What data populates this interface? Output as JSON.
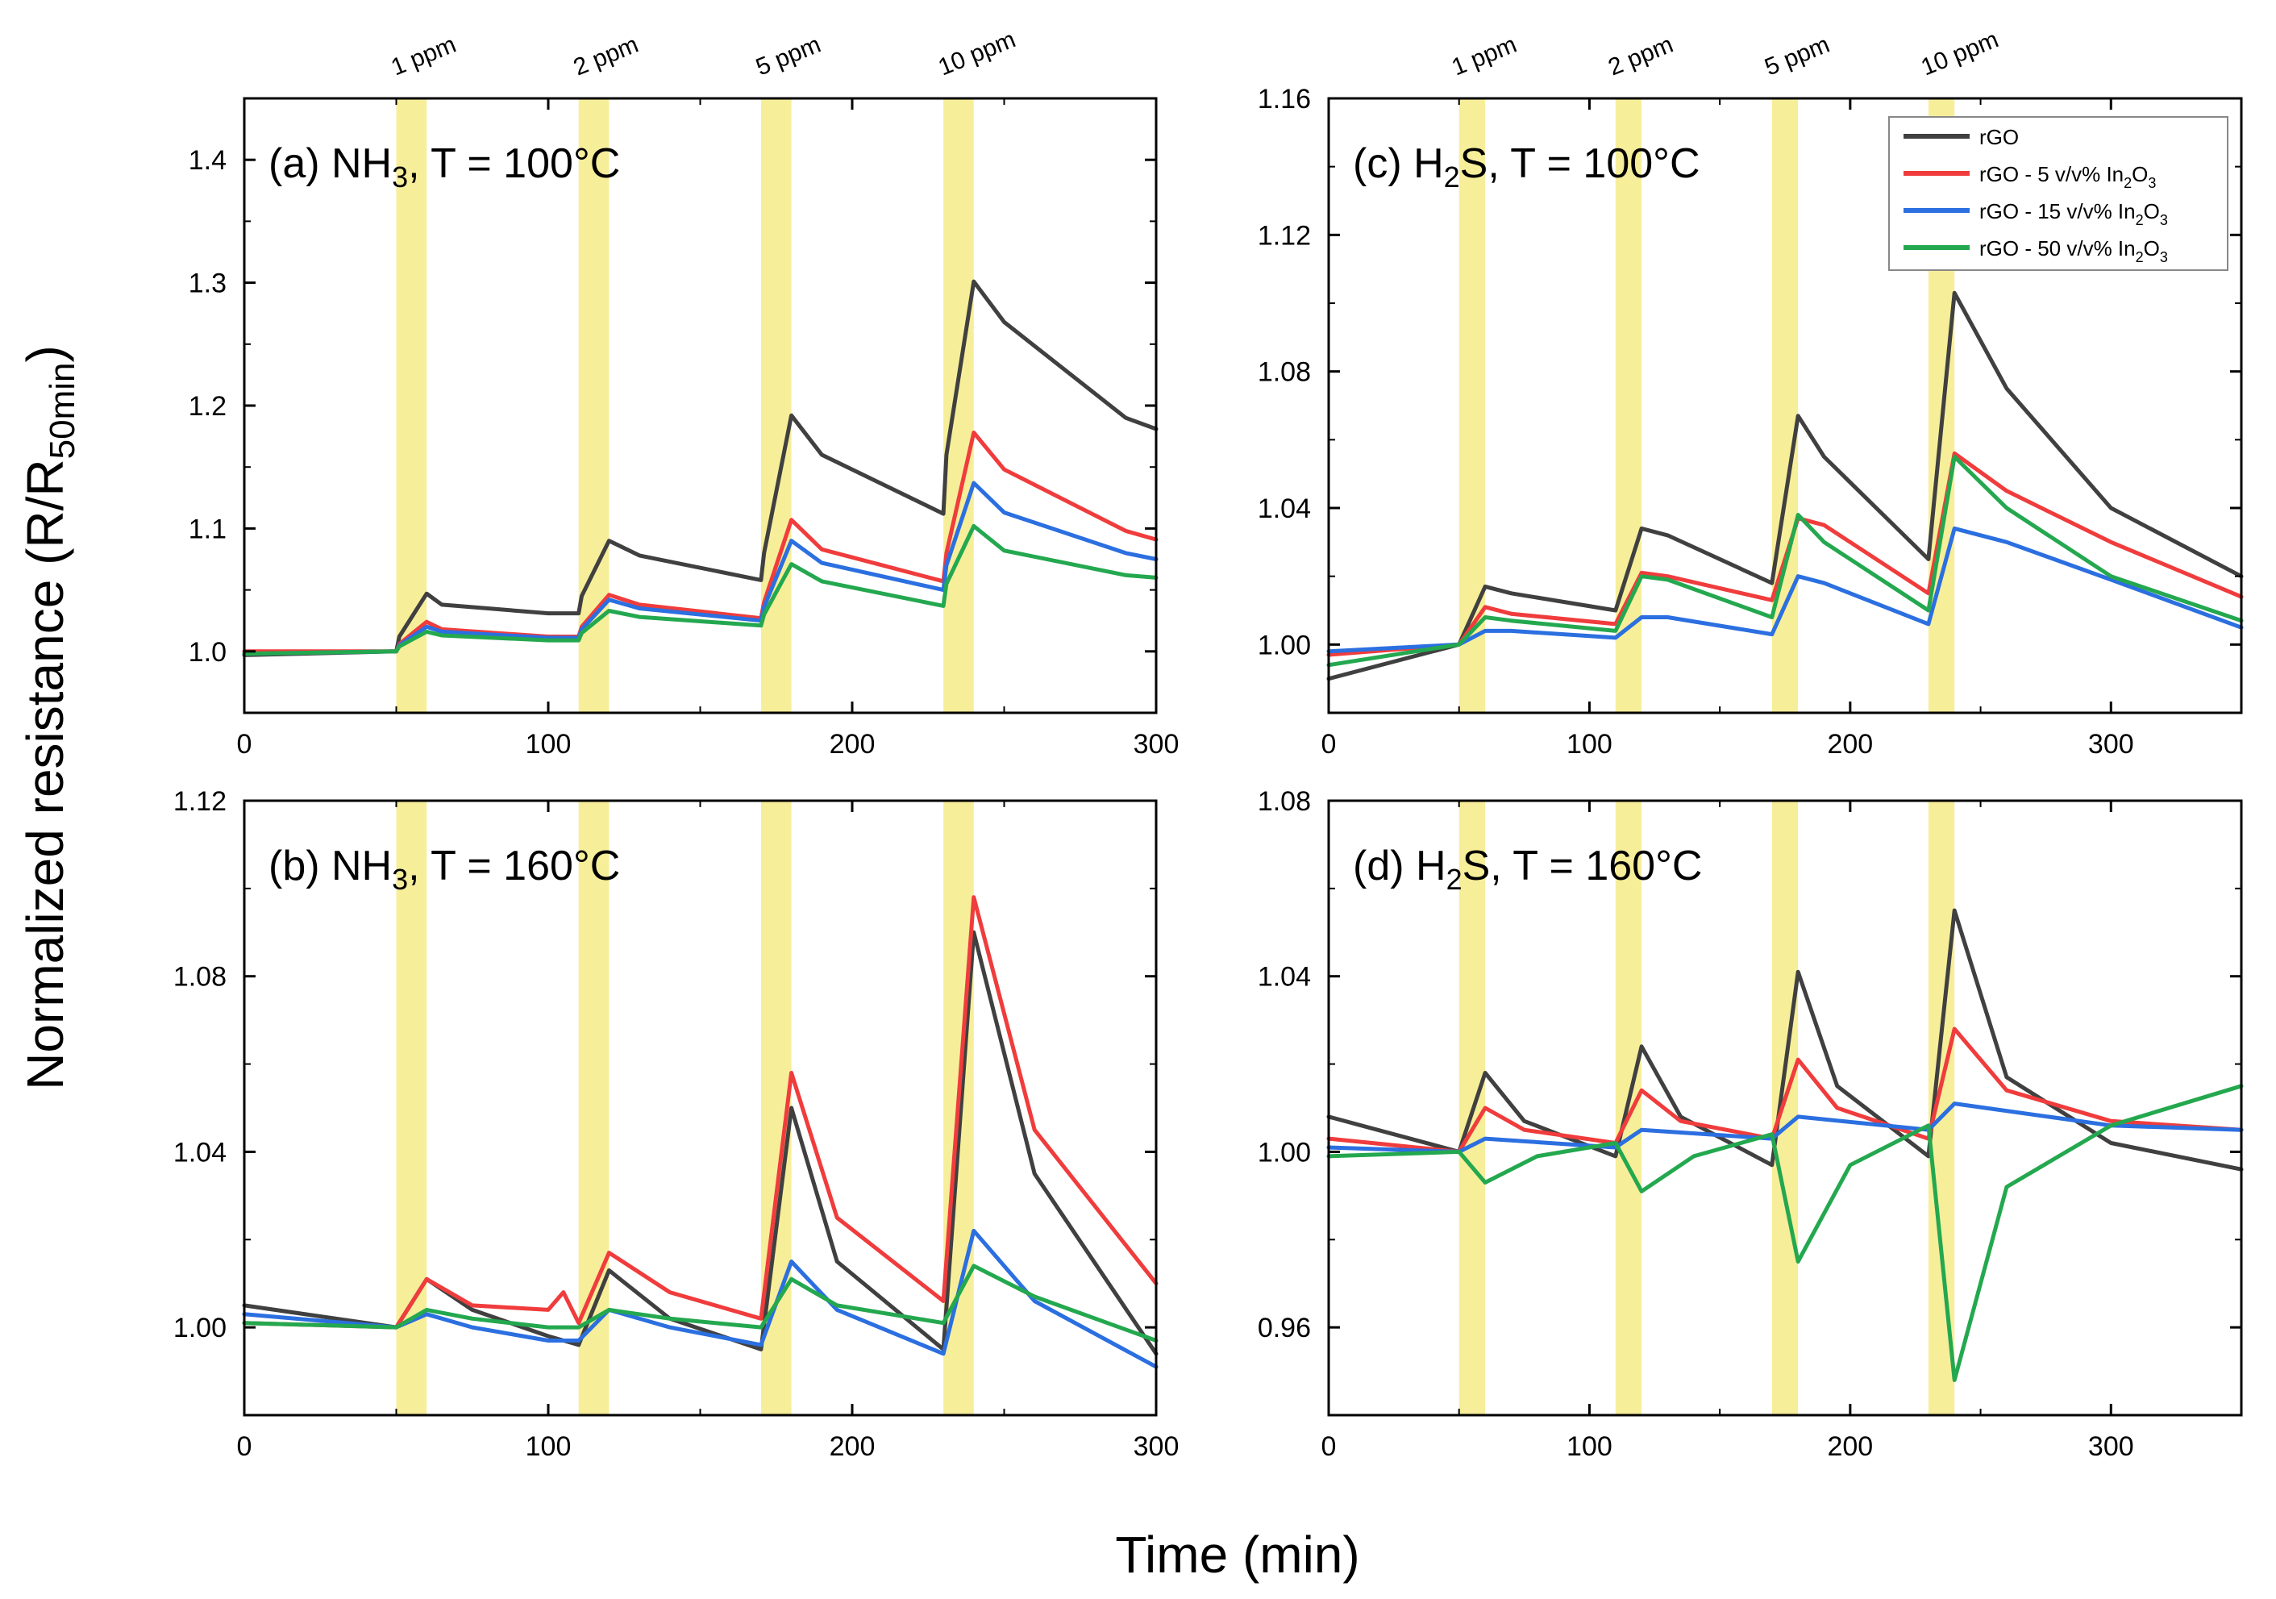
{
  "figure": {
    "ylabel_main": "Normalized resistance (R/R",
    "ylabel_sub": "50min",
    "ylabel_close": ")",
    "xlabel": "Time (min)"
  },
  "legend": {
    "items": [
      {
        "label_pre": "rGO",
        "label_mid": "",
        "label_mid_sub": "",
        "label_post": "",
        "label_post_sub": "",
        "color": "#404040"
      },
      {
        "label_pre": "rGO - 5 v/v% In",
        "label_mid": "2",
        "label_mid_sub": "",
        "label_post": "O",
        "label_post_sub": "3",
        "color": "#f03c3c"
      },
      {
        "label_pre": "rGO - 15 v/v% In",
        "label_mid": "2",
        "label_mid_sub": "",
        "label_post": "O",
        "label_post_sub": "3",
        "color": "#2b6fe0"
      },
      {
        "label_pre": "rGO - 50 v/v% In",
        "label_mid": "2",
        "label_mid_sub": "",
        "label_post": "O",
        "label_post_sub": "3",
        "color": "#24a84f"
      }
    ]
  },
  "chart_data": [
    {
      "id": "a",
      "type": "line",
      "title_pre": "(a) NH",
      "title_sub": "3",
      "title_post": ", T = 100°C",
      "xlim": [
        0,
        300
      ],
      "ylim": [
        0.95,
        1.45
      ],
      "xticks": [
        0,
        100,
        200,
        300
      ],
      "xtick_labels": [
        "0",
        "100",
        "200",
        "300"
      ],
      "yticks": [
        1.0,
        1.1,
        1.2,
        1.3,
        1.4
      ],
      "ytick_labels": [
        "1.0",
        "1.1",
        "1.2",
        "1.3",
        "1.4"
      ],
      "exposures": [
        [
          50,
          60
        ],
        [
          110,
          120
        ],
        [
          170,
          180
        ],
        [
          230,
          240
        ]
      ],
      "ppm_labels": [
        "1 ppm",
        "2 ppm",
        "5 ppm",
        "10 ppm"
      ],
      "series": [
        {
          "name": "rGO",
          "color": "#404040",
          "x": [
            0,
            50,
            51,
            60,
            65,
            100,
            110,
            111,
            120,
            130,
            170,
            171,
            180,
            190,
            230,
            231,
            240,
            250,
            290,
            300
          ],
          "y": [
            0.997,
            1.0,
            1.012,
            1.047,
            1.038,
            1.031,
            1.031,
            1.045,
            1.09,
            1.078,
            1.058,
            1.08,
            1.192,
            1.16,
            1.112,
            1.16,
            1.301,
            1.268,
            1.19,
            1.181
          ]
        },
        {
          "name": "rGO - 5 v/v% In2O3",
          "color": "#f03c3c",
          "x": [
            0,
            50,
            51,
            60,
            65,
            100,
            110,
            111,
            120,
            130,
            170,
            171,
            180,
            190,
            230,
            231,
            240,
            250,
            290,
            300
          ],
          "y": [
            1.0,
            1.0,
            1.006,
            1.024,
            1.018,
            1.012,
            1.012,
            1.02,
            1.046,
            1.038,
            1.027,
            1.04,
            1.107,
            1.083,
            1.057,
            1.08,
            1.178,
            1.148,
            1.098,
            1.091
          ]
        },
        {
          "name": "rGO - 15 v/v% In2O3",
          "color": "#2b6fe0",
          "x": [
            0,
            50,
            51,
            60,
            65,
            100,
            110,
            111,
            120,
            130,
            170,
            171,
            180,
            190,
            230,
            231,
            240,
            250,
            290,
            300
          ],
          "y": [
            0.998,
            1.0,
            1.005,
            1.02,
            1.016,
            1.011,
            1.011,
            1.018,
            1.042,
            1.035,
            1.025,
            1.036,
            1.09,
            1.072,
            1.05,
            1.07,
            1.137,
            1.113,
            1.08,
            1.075
          ]
        },
        {
          "name": "rGO - 50 v/v% In2O3",
          "color": "#24a84f",
          "x": [
            0,
            50,
            51,
            60,
            65,
            100,
            110,
            111,
            120,
            130,
            170,
            171,
            180,
            190,
            230,
            231,
            240,
            250,
            290,
            300
          ],
          "y": [
            0.998,
            1.0,
            1.004,
            1.016,
            1.013,
            1.009,
            1.009,
            1.015,
            1.033,
            1.028,
            1.021,
            1.03,
            1.071,
            1.057,
            1.037,
            1.055,
            1.102,
            1.082,
            1.062,
            1.06
          ]
        }
      ]
    },
    {
      "id": "b",
      "type": "line",
      "title_pre": "(b) NH",
      "title_sub": "3",
      "title_post": ", T = 160°C",
      "xlim": [
        0,
        300
      ],
      "ylim": [
        0.98,
        1.12
      ],
      "xticks": [
        0,
        100,
        200,
        300
      ],
      "xtick_labels": [
        "0",
        "100",
        "200",
        "300"
      ],
      "yticks": [
        1.0,
        1.04,
        1.08,
        1.12
      ],
      "ytick_labels": [
        "1.00",
        "1.04",
        "1.08",
        "1.12"
      ],
      "exposures": [
        [
          50,
          60
        ],
        [
          110,
          120
        ],
        [
          170,
          180
        ],
        [
          230,
          240
        ]
      ],
      "ppm_labels": [],
      "series": [
        {
          "name": "rGO",
          "color": "#404040",
          "x": [
            0,
            50,
            60,
            75,
            100,
            110,
            120,
            140,
            170,
            180,
            195,
            230,
            240,
            260,
            300
          ],
          "y": [
            1.005,
            1.0,
            1.011,
            1.004,
            0.998,
            0.996,
            1.013,
            1.002,
            0.995,
            1.05,
            1.015,
            0.995,
            1.09,
            1.035,
            0.994
          ]
        },
        {
          "name": "rGO - 5 v/v% In2O3",
          "color": "#f03c3c",
          "x": [
            0,
            50,
            60,
            75,
            100,
            105,
            110,
            120,
            140,
            170,
            180,
            195,
            230,
            240,
            260,
            300
          ],
          "y": [
            1.001,
            1.0,
            1.011,
            1.005,
            1.004,
            1.008,
            1.001,
            1.017,
            1.008,
            1.002,
            1.058,
            1.025,
            1.006,
            1.098,
            1.045,
            1.01
          ]
        },
        {
          "name": "rGO - 15 v/v% In2O3",
          "color": "#2b6fe0",
          "x": [
            0,
            50,
            60,
            75,
            100,
            110,
            120,
            140,
            170,
            180,
            195,
            230,
            240,
            260,
            300
          ],
          "y": [
            1.003,
            1.0,
            1.003,
            1.0,
            0.997,
            0.997,
            1.004,
            1.0,
            0.996,
            1.015,
            1.004,
            0.994,
            1.022,
            1.006,
            0.991
          ]
        },
        {
          "name": "rGO - 50 v/v% In2O3",
          "color": "#24a84f",
          "x": [
            0,
            50,
            60,
            75,
            100,
            110,
            120,
            140,
            170,
            180,
            195,
            230,
            240,
            260,
            300
          ],
          "y": [
            1.001,
            1.0,
            1.004,
            1.002,
            1.0,
            1.0,
            1.004,
            1.002,
            1.0,
            1.011,
            1.005,
            1.001,
            1.014,
            1.007,
            0.997
          ]
        }
      ]
    },
    {
      "id": "c",
      "type": "line",
      "title_pre": "(c) H",
      "title_sub": "2",
      "title_post": "S, T = 100°C",
      "xlim": [
        0,
        350
      ],
      "ylim": [
        0.98,
        1.16
      ],
      "xticks": [
        0,
        100,
        200,
        300
      ],
      "xtick_labels": [
        "0",
        "100",
        "200",
        "300"
      ],
      "yticks": [
        1.0,
        1.04,
        1.08,
        1.12,
        1.16
      ],
      "ytick_labels": [
        "1.00",
        "1.04",
        "1.08",
        "1.12",
        "1.16"
      ],
      "exposures": [
        [
          50,
          60
        ],
        [
          110,
          120
        ],
        [
          170,
          180
        ],
        [
          230,
          240
        ]
      ],
      "ppm_labels": [
        "1 ppm",
        "2 ppm",
        "5 ppm",
        "10 ppm"
      ],
      "series": [
        {
          "name": "rGO",
          "color": "#404040",
          "x": [
            0,
            50,
            60,
            70,
            110,
            120,
            130,
            170,
            180,
            190,
            230,
            240,
            260,
            300,
            350
          ],
          "y": [
            0.99,
            1.0,
            1.017,
            1.015,
            1.01,
            1.034,
            1.032,
            1.018,
            1.067,
            1.055,
            1.025,
            1.103,
            1.075,
            1.04,
            1.02
          ]
        },
        {
          "name": "rGO - 5 v/v% In2O3",
          "color": "#f03c3c",
          "x": [
            0,
            50,
            60,
            70,
            110,
            120,
            130,
            170,
            180,
            190,
            230,
            240,
            260,
            300,
            350
          ],
          "y": [
            0.997,
            1.0,
            1.011,
            1.009,
            1.006,
            1.021,
            1.02,
            1.013,
            1.037,
            1.035,
            1.015,
            1.056,
            1.045,
            1.03,
            1.014
          ]
        },
        {
          "name": "rGO - 15 v/v% In2O3",
          "color": "#2b6fe0",
          "x": [
            0,
            50,
            60,
            70,
            110,
            120,
            130,
            170,
            180,
            190,
            230,
            240,
            260,
            300,
            350
          ],
          "y": [
            0.998,
            1.0,
            1.004,
            1.004,
            1.002,
            1.008,
            1.008,
            1.003,
            1.02,
            1.018,
            1.006,
            1.034,
            1.03,
            1.019,
            1.005
          ]
        },
        {
          "name": "rGO - 50 v/v% In2O3",
          "color": "#24a84f",
          "x": [
            0,
            50,
            60,
            70,
            110,
            120,
            130,
            170,
            180,
            190,
            230,
            240,
            260,
            300,
            350
          ],
          "y": [
            0.994,
            1.0,
            1.008,
            1.007,
            1.004,
            1.02,
            1.019,
            1.008,
            1.038,
            1.03,
            1.01,
            1.055,
            1.04,
            1.02,
            1.007
          ]
        }
      ]
    },
    {
      "id": "d",
      "type": "line",
      "title_pre": "(d) H",
      "title_sub": "2",
      "title_post": "S, T = 160°C",
      "xlim": [
        0,
        350
      ],
      "ylim": [
        0.94,
        1.08
      ],
      "xticks": [
        0,
        100,
        200,
        300
      ],
      "xtick_labels": [
        "0",
        "100",
        "200",
        "300"
      ],
      "yticks": [
        0.96,
        1.0,
        1.04,
        1.08
      ],
      "ytick_labels": [
        "0.96",
        "1.00",
        "1.04",
        "1.08"
      ],
      "exposures": [
        [
          50,
          60
        ],
        [
          110,
          120
        ],
        [
          170,
          180
        ],
        [
          230,
          240
        ]
      ],
      "ppm_labels": [],
      "series": [
        {
          "name": "rGO",
          "color": "#404040",
          "x": [
            0,
            50,
            60,
            75,
            110,
            120,
            135,
            170,
            180,
            195,
            230,
            240,
            260,
            300,
            350
          ],
          "y": [
            1.008,
            1.0,
            1.018,
            1.007,
            0.999,
            1.024,
            1.008,
            0.997,
            1.041,
            1.015,
            0.999,
            1.055,
            1.017,
            1.002,
            0.996
          ]
        },
        {
          "name": "rGO - 5 v/v% In2O3",
          "color": "#f03c3c",
          "x": [
            0,
            50,
            60,
            75,
            110,
            120,
            135,
            170,
            180,
            195,
            230,
            240,
            260,
            300,
            350
          ],
          "y": [
            1.003,
            1.0,
            1.01,
            1.005,
            1.002,
            1.014,
            1.007,
            1.003,
            1.021,
            1.01,
            1.003,
            1.028,
            1.014,
            1.007,
            1.005
          ]
        },
        {
          "name": "rGO - 15 v/v% In2O3",
          "color": "#2b6fe0",
          "x": [
            0,
            50,
            60,
            110,
            120,
            170,
            180,
            230,
            240,
            300,
            350
          ],
          "y": [
            1.001,
            1.0,
            1.003,
            1.001,
            1.005,
            1.003,
            1.008,
            1.005,
            1.011,
            1.006,
            1.005
          ]
        },
        {
          "name": "rGO - 50 v/v% In2O3",
          "color": "#24a84f",
          "x": [
            0,
            50,
            60,
            80,
            110,
            120,
            140,
            170,
            180,
            200,
            230,
            240,
            260,
            300,
            350
          ],
          "y": [
            0.999,
            1.0,
            0.993,
            0.999,
            1.002,
            0.991,
            0.999,
            1.004,
            0.975,
            0.997,
            1.006,
            0.948,
            0.992,
            1.006,
            1.015
          ]
        }
      ]
    }
  ]
}
